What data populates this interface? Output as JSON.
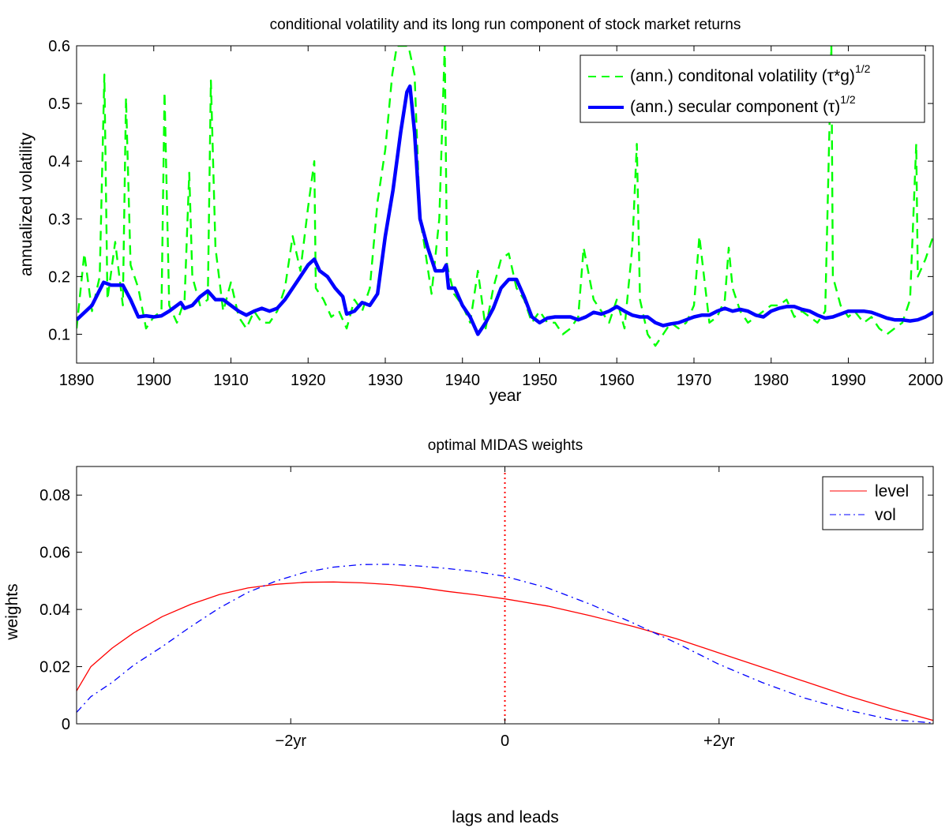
{
  "chart_data": [
    {
      "type": "line",
      "title": "conditional volatility and its long run component of stock market returns",
      "xlabel": "year",
      "ylabel": "annualized volatility",
      "xlim": [
        1890,
        2001
      ],
      "ylim": [
        0.05,
        0.6
      ],
      "x_ticks": [
        1890,
        1900,
        1910,
        1920,
        1930,
        1940,
        1950,
        1960,
        1970,
        1980,
        1990,
        2000
      ],
      "y_ticks": [
        0.1,
        0.2,
        0.3,
        0.4,
        0.5,
        0.6
      ],
      "x_tick_labels": [
        "1890",
        "1900",
        "1910",
        "1920",
        "1930",
        "1940",
        "1950",
        "1960",
        "1970",
        "1980",
        "1990",
        "2000"
      ],
      "y_tick_labels": [
        "0.1",
        "0.2",
        "0.3",
        "0.4",
        "0.5",
        "0.6"
      ],
      "grid": false,
      "legend_position": "top-right",
      "series": [
        {
          "name": "(ann.) conditonal volatility (τ*g)",
          "name_superscript": "1/2",
          "color": "#00ff00",
          "style": "dashed",
          "x": [
            1890,
            1891,
            1892,
            1893,
            1893.6,
            1894,
            1895,
            1896,
            1896.4,
            1897,
            1898,
            1899,
            1900,
            1901,
            1901.4,
            1902,
            1903,
            1904,
            1904.6,
            1905,
            1906,
            1907,
            1907.4,
            1908,
            1909,
            1910,
            1911,
            1912,
            1913,
            1914,
            1915,
            1916,
            1917,
            1918,
            1919,
            1920,
            1920.8,
            1921,
            1922,
            1923,
            1924,
            1925,
            1926,
            1927,
            1928,
            1929,
            1930,
            1930.9,
            1931.5,
            1932.3,
            1933,
            1933.8,
            1934.5,
            1935,
            1936,
            1937,
            1937.7,
            1938,
            1938.9,
            1940,
            1941,
            1942,
            1943,
            1944,
            1945,
            1946,
            1947,
            1948,
            1949,
            1950,
            1951,
            1952,
            1953,
            1954,
            1955,
            1955.7,
            1957,
            1958,
            1959,
            1960,
            1961,
            1962,
            1962.6,
            1963,
            1964,
            1965,
            1966,
            1967,
            1968,
            1969,
            1970,
            1970.7,
            1972,
            1973,
            1974,
            1974.5,
            1975,
            1976,
            1977,
            1978,
            1979,
            1980,
            1981,
            1982,
            1983,
            1984,
            1985,
            1986,
            1987,
            1987.8,
            1988,
            1989,
            1990,
            1990.8,
            1992,
            1993,
            1994,
            1995,
            1996,
            1997,
            1998,
            1998.8,
            1999,
            2000,
            2001
          ],
          "values": [
            0.11,
            0.24,
            0.14,
            0.2,
            0.55,
            0.16,
            0.26,
            0.15,
            0.51,
            0.22,
            0.18,
            0.11,
            0.13,
            0.14,
            0.52,
            0.15,
            0.12,
            0.16,
            0.38,
            0.2,
            0.15,
            0.16,
            0.54,
            0.25,
            0.14,
            0.19,
            0.13,
            0.11,
            0.14,
            0.12,
            0.12,
            0.14,
            0.18,
            0.27,
            0.21,
            0.32,
            0.4,
            0.18,
            0.16,
            0.13,
            0.14,
            0.11,
            0.16,
            0.14,
            0.18,
            0.33,
            0.42,
            0.55,
            0.6,
            0.6,
            0.6,
            0.55,
            0.3,
            0.26,
            0.17,
            0.3,
            0.6,
            0.22,
            0.17,
            0.15,
            0.12,
            0.21,
            0.11,
            0.18,
            0.23,
            0.24,
            0.18,
            0.16,
            0.12,
            0.14,
            0.12,
            0.12,
            0.1,
            0.11,
            0.13,
            0.25,
            0.16,
            0.14,
            0.12,
            0.16,
            0.11,
            0.25,
            0.43,
            0.16,
            0.1,
            0.08,
            0.1,
            0.12,
            0.11,
            0.12,
            0.15,
            0.27,
            0.12,
            0.13,
            0.16,
            0.25,
            0.18,
            0.14,
            0.12,
            0.13,
            0.14,
            0.15,
            0.15,
            0.16,
            0.13,
            0.14,
            0.13,
            0.12,
            0.14,
            0.6,
            0.2,
            0.15,
            0.13,
            0.14,
            0.12,
            0.13,
            0.11,
            0.1,
            0.11,
            0.12,
            0.16,
            0.43,
            0.2,
            0.23,
            0.27
          ]
        },
        {
          "name": "(ann.) secular component (τ)",
          "name_superscript": "1/2",
          "color": "#0000ff",
          "style": "solid-thick",
          "x": [
            1890,
            1892,
            1893.5,
            1894.5,
            1896,
            1897,
            1898,
            1899,
            1900,
            1901,
            1902,
            1903,
            1903.5,
            1904,
            1905,
            1906,
            1907,
            1908,
            1909,
            1910,
            1911,
            1912,
            1913,
            1914,
            1915,
            1916,
            1917,
            1918,
            1919,
            1920,
            1920.8,
            1921.5,
            1922.5,
            1923.5,
            1924.5,
            1925,
            1926,
            1927,
            1928,
            1929,
            1930,
            1931,
            1932,
            1932.8,
            1933.2,
            1933.8,
            1934.5,
            1935.5,
            1936.5,
            1937.5,
            1937.9,
            1938.2,
            1939,
            1940,
            1941,
            1942,
            1943,
            1944,
            1945,
            1946,
            1947,
            1948,
            1949,
            1950,
            1951,
            1952,
            1953,
            1954,
            1955,
            1956,
            1957,
            1958,
            1959,
            1960,
            1961,
            1962,
            1963,
            1964,
            1965,
            1966,
            1967,
            1968,
            1969,
            1970,
            1971,
            1972,
            1973,
            1974,
            1975,
            1976,
            1977,
            1978,
            1979,
            1980,
            1981,
            1982,
            1983,
            1984,
            1985,
            1986,
            1987,
            1988,
            1989,
            1990,
            1991,
            1992,
            1993,
            1994,
            1995,
            1996,
            1997,
            1998,
            1999,
            2000,
            2001
          ],
          "values": [
            0.125,
            0.15,
            0.19,
            0.185,
            0.185,
            0.16,
            0.13,
            0.132,
            0.13,
            0.132,
            0.14,
            0.15,
            0.155,
            0.145,
            0.15,
            0.165,
            0.175,
            0.16,
            0.16,
            0.15,
            0.14,
            0.133,
            0.14,
            0.145,
            0.14,
            0.145,
            0.16,
            0.18,
            0.2,
            0.22,
            0.23,
            0.21,
            0.2,
            0.18,
            0.165,
            0.135,
            0.14,
            0.155,
            0.15,
            0.17,
            0.27,
            0.35,
            0.45,
            0.52,
            0.53,
            0.45,
            0.3,
            0.25,
            0.21,
            0.21,
            0.22,
            0.18,
            0.18,
            0.15,
            0.13,
            0.1,
            0.12,
            0.145,
            0.18,
            0.195,
            0.195,
            0.165,
            0.13,
            0.12,
            0.128,
            0.13,
            0.13,
            0.13,
            0.125,
            0.13,
            0.138,
            0.135,
            0.14,
            0.148,
            0.14,
            0.133,
            0.13,
            0.13,
            0.12,
            0.115,
            0.118,
            0.12,
            0.125,
            0.13,
            0.133,
            0.133,
            0.14,
            0.145,
            0.14,
            0.143,
            0.14,
            0.133,
            0.13,
            0.14,
            0.145,
            0.148,
            0.148,
            0.143,
            0.14,
            0.133,
            0.128,
            0.13,
            0.135,
            0.14,
            0.14,
            0.14,
            0.138,
            0.133,
            0.128,
            0.125,
            0.125,
            0.123,
            0.125,
            0.13,
            0.138
          ]
        }
      ]
    },
    {
      "type": "line",
      "title": "optimal MIDAS weights",
      "xlabel": "lags and leads",
      "ylabel": "weights",
      "xlim": [
        -3,
        3
      ],
      "ylim": [
        0,
        0.09
      ],
      "x_ticks": [
        -1.5,
        0,
        1.5
      ],
      "x_tick_labels": [
        "−2yr",
        "0",
        "+2yr"
      ],
      "y_ticks": [
        0,
        0.02,
        0.04,
        0.06,
        0.08
      ],
      "y_tick_labels": [
        "0",
        "0.02",
        "0.04",
        "0.06",
        "0.08"
      ],
      "grid": false,
      "legend_position": "top-right",
      "vline": {
        "x": 0,
        "color": "#ff0000",
        "style": "dotted"
      },
      "series": [
        {
          "name": "level",
          "color": "#ff0000",
          "style": "solid",
          "x": [
            -3,
            -2.9,
            -2.75,
            -2.6,
            -2.4,
            -2.2,
            -2.0,
            -1.8,
            -1.6,
            -1.4,
            -1.2,
            -1.0,
            -0.8,
            -0.6,
            -0.4,
            -0.2,
            0,
            0.3,
            0.6,
            0.9,
            1.2,
            1.5,
            1.8,
            2.1,
            2.4,
            2.7,
            3.0
          ],
          "values": [
            0.0115,
            0.02,
            0.0265,
            0.0318,
            0.0375,
            0.0418,
            0.0452,
            0.0475,
            0.0488,
            0.0495,
            0.0496,
            0.0493,
            0.0487,
            0.0477,
            0.0463,
            0.0451,
            0.0437,
            0.0412,
            0.0378,
            0.034,
            0.0298,
            0.0248,
            0.0198,
            0.0148,
            0.0098,
            0.0053,
            0.0012
          ]
        },
        {
          "name": "vol",
          "color": "#0000ff",
          "style": "dashdot",
          "x": [
            -3,
            -2.9,
            -2.75,
            -2.6,
            -2.4,
            -2.2,
            -2.0,
            -1.8,
            -1.6,
            -1.4,
            -1.2,
            -1.0,
            -0.8,
            -0.6,
            -0.4,
            -0.2,
            0,
            0.3,
            0.6,
            0.9,
            1.2,
            1.5,
            1.8,
            2.1,
            2.4,
            2.7,
            3.0
          ],
          "values": [
            0.004,
            0.0095,
            0.0145,
            0.0205,
            0.027,
            0.034,
            0.0405,
            0.046,
            0.05,
            0.053,
            0.0548,
            0.0557,
            0.0558,
            0.0552,
            0.0543,
            0.0532,
            0.0516,
            0.0475,
            0.0418,
            0.0352,
            0.0283,
            0.0208,
            0.0145,
            0.009,
            0.0048,
            0.0015,
            0.0003
          ]
        }
      ]
    }
  ]
}
